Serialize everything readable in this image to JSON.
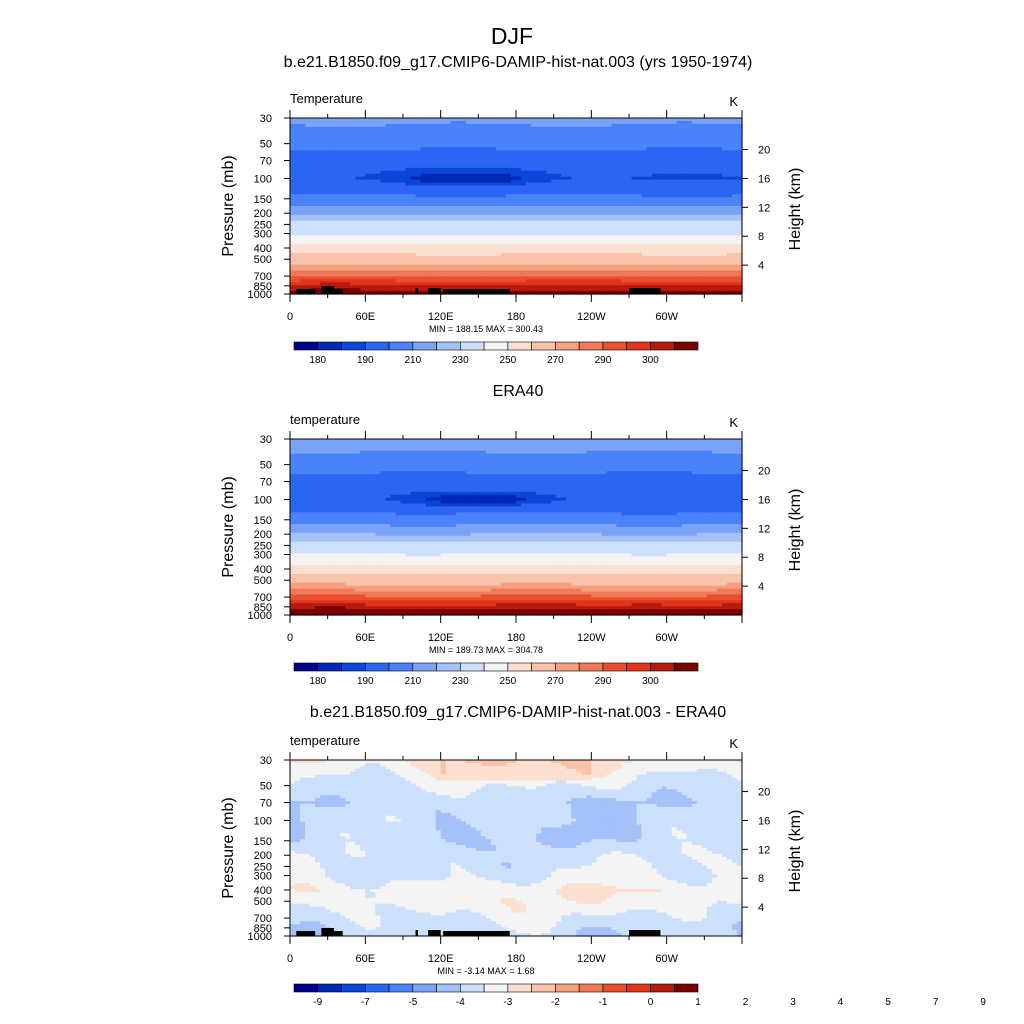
{
  "page_title": "DJF",
  "chart_data": [
    {
      "type": "heatmap",
      "title": "b.e21.B1850.f09_g17.CMIP6-DAMIP-hist-nat.003 (yrs 1950-1974)",
      "left_label": "Temperature",
      "units": "K",
      "ylabel": "Pressure (mb)",
      "ylabel_right": "Height (km)",
      "x_ticks": [
        "0",
        "60E",
        "120E",
        "180",
        "120W",
        "60W"
      ],
      "y_ticks": [
        "30",
        "50",
        "70",
        "100",
        "150",
        "200",
        "250",
        "300",
        "400",
        "500",
        "700",
        "850",
        "1000"
      ],
      "height_ticks": [
        "4",
        "8",
        "12",
        "16",
        "20"
      ],
      "stats": "MIN = 188.15  MAX = 300.43",
      "colorbar_labels": [
        "180",
        "190",
        "210",
        "230",
        "250",
        "270",
        "290",
        "300"
      ],
      "colorbar_colors": [
        "#00008c",
        "#0027b6",
        "#0a46d8",
        "#2b66f2",
        "#4a82fa",
        "#7aa3f8",
        "#a4c2f9",
        "#cce0fb",
        "#f4f4f4",
        "#fbe0d1",
        "#f8c3a8",
        "#f5a181",
        "#f07a57",
        "#eb4f32",
        "#e2341b",
        "#b71b0f",
        "#7a0000"
      ],
      "level_values": [
        185,
        195,
        200,
        205,
        210,
        215,
        220,
        230,
        240,
        250,
        260,
        265,
        270,
        275,
        280,
        285,
        290,
        295
      ],
      "model_profile": [
        {
          "p": 30,
          "t": 211
        },
        {
          "p": 50,
          "t": 207
        },
        {
          "p": 70,
          "t": 201
        },
        {
          "p": 100,
          "t": 200
        },
        {
          "p": 150,
          "t": 206
        },
        {
          "p": 200,
          "t": 214
        },
        {
          "p": 250,
          "t": 222
        },
        {
          "p": 300,
          "t": 229
        },
        {
          "p": 400,
          "t": 244
        },
        {
          "p": 500,
          "t": 255
        },
        {
          "p": 700,
          "t": 270
        },
        {
          "p": 850,
          "t": 280
        },
        {
          "p": 1000,
          "t": 288
        }
      ],
      "cold_core": {
        "lon": 140,
        "p": 100,
        "t": 188
      }
    },
    {
      "type": "heatmap",
      "title": "ERA40",
      "left_label": "temperature",
      "units": "K",
      "ylabel": "Pressure (mb)",
      "ylabel_right": "Height (km)",
      "x_ticks": [
        "0",
        "60E",
        "120E",
        "180",
        "120W",
        "60W"
      ],
      "y_ticks": [
        "30",
        "50",
        "70",
        "100",
        "150",
        "200",
        "250",
        "300",
        "400",
        "500",
        "700",
        "850",
        "1000"
      ],
      "height_ticks": [
        "4",
        "8",
        "12",
        "16",
        "20"
      ],
      "stats": "MIN = 189.73  MAX = 304.78",
      "colorbar_labels": [
        "180",
        "190",
        "210",
        "230",
        "250",
        "270",
        "290",
        "300"
      ],
      "colorbar_colors": [
        "#00008c",
        "#0027b6",
        "#0a46d8",
        "#2b66f2",
        "#4a82fa",
        "#7aa3f8",
        "#a4c2f9",
        "#cce0fb",
        "#f4f4f4",
        "#fbe0d1",
        "#f8c3a8",
        "#f5a181",
        "#f07a57",
        "#eb4f32",
        "#e2341b",
        "#b71b0f",
        "#7a0000"
      ],
      "level_values": [
        185,
        195,
        200,
        205,
        210,
        215,
        220,
        230,
        240,
        250,
        260,
        265,
        270,
        275,
        280,
        285,
        290,
        295
      ],
      "model_profile": [
        {
          "p": 30,
          "t": 212
        },
        {
          "p": 50,
          "t": 208
        },
        {
          "p": 70,
          "t": 202
        },
        {
          "p": 100,
          "t": 201
        },
        {
          "p": 150,
          "t": 207
        },
        {
          "p": 200,
          "t": 215
        },
        {
          "p": 250,
          "t": 223
        },
        {
          "p": 300,
          "t": 230
        },
        {
          "p": 400,
          "t": 244
        },
        {
          "p": 500,
          "t": 256
        },
        {
          "p": 700,
          "t": 271
        },
        {
          "p": 850,
          "t": 282
        },
        {
          "p": 1000,
          "t": 291
        }
      ],
      "cold_core": {
        "lon": 150,
        "p": 100,
        "t": 190
      }
    },
    {
      "type": "heatmap",
      "title": "b.e21.B1850.f09_g17.CMIP6-DAMIP-hist-nat.003 - ERA40",
      "left_label": "temperature",
      "units": "K",
      "ylabel": "Pressure (mb)",
      "ylabel_right": "Height (km)",
      "x_ticks": [
        "0",
        "60E",
        "120E",
        "180",
        "120W",
        "60W"
      ],
      "y_ticks": [
        "30",
        "50",
        "70",
        "100",
        "150",
        "200",
        "250",
        "300",
        "400",
        "500",
        "700",
        "850",
        "1000"
      ],
      "height_ticks": [
        "4",
        "8",
        "12",
        "16",
        "20"
      ],
      "stats": "MIN = -3.14  MAX =  1.68",
      "colorbar_labels": [
        "-9",
        "-7",
        "-5",
        "-4",
        "-3",
        "-2",
        "-1",
        "0",
        "1",
        "2",
        "3",
        "4",
        "5",
        "7",
        "9"
      ],
      "colorbar_colors": [
        "#00008c",
        "#0027b6",
        "#0a46d8",
        "#2b66f2",
        "#4a82fa",
        "#7aa3f8",
        "#a4c2f9",
        "#cce0fb",
        "#f4f4f4",
        "#fbe0d1",
        "#f8c3a8",
        "#f5a181",
        "#f07a57",
        "#eb4f32",
        "#e2341b",
        "#b71b0f",
        "#7a0000"
      ],
      "level_values": [
        -10,
        -8,
        -6,
        -4.5,
        -3.5,
        -2.5,
        -1.5,
        -0.5,
        0.5,
        1.5,
        2.5,
        3.5,
        4.5,
        6,
        8,
        10
      ],
      "diff_profile": [
        {
          "p": 30,
          "d": 0.6
        },
        {
          "p": 50,
          "d": -0.6
        },
        {
          "p": 70,
          "d": -1.4
        },
        {
          "p": 100,
          "d": -1.2
        },
        {
          "p": 150,
          "d": -1.3
        },
        {
          "p": 200,
          "d": -0.8
        },
        {
          "p": 250,
          "d": -0.7
        },
        {
          "p": 300,
          "d": -0.6
        },
        {
          "p": 400,
          "d": 0.3
        },
        {
          "p": 500,
          "d": 0.1
        },
        {
          "p": 700,
          "d": -0.6
        },
        {
          "p": 850,
          "d": -1.0
        },
        {
          "p": 1000,
          "d": -1.2
        }
      ]
    }
  ]
}
